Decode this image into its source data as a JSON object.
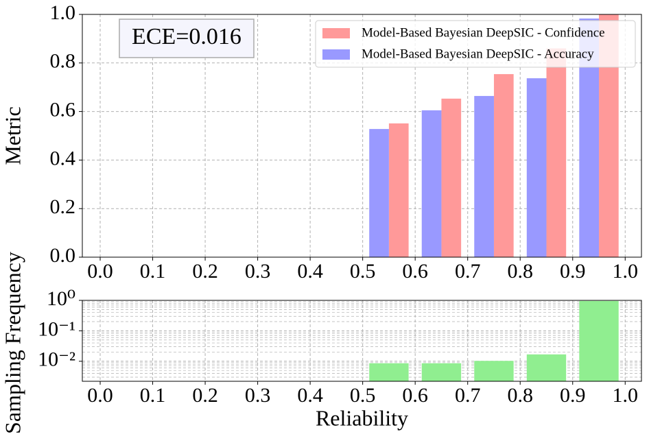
{
  "chart_data": [
    {
      "type": "bar",
      "ylabel": "Metric",
      "annotation": "ECE=0.016",
      "legend": "upper right",
      "grid": true,
      "x": [
        0.55,
        0.65,
        0.75,
        0.85,
        0.95
      ],
      "series": [
        {
          "name": "Model-Based Bayesian DeepSIC - Confidence",
          "color": "#ff9999",
          "values": [
            0.551,
            0.653,
            0.754,
            0.86,
            1.0
          ]
        },
        {
          "name": "Model-Based Bayesian DeepSIC - Accuracy",
          "color": "#9999ff",
          "values": [
            0.528,
            0.605,
            0.664,
            0.737,
            0.983
          ]
        }
      ],
      "xlim": [
        -0.034,
        1.031
      ],
      "xticks": [
        {
          "value": 0,
          "label": "0.0"
        },
        0.1,
        0.2,
        0.3,
        0.4,
        0.5,
        0.6,
        0.7,
        0.8,
        0.9,
        {
          "value": 1,
          "label": "1.0"
        }
      ],
      "ylim": [
        0,
        1
      ],
      "yticks": [
        {
          "value": 0,
          "label": "0.0"
        },
        0.2,
        0.4,
        0.6,
        0.8,
        {
          "value": 1,
          "label": "1.0"
        }
      ]
    },
    {
      "type": "bar",
      "xlabel": "Reliability",
      "ylabel": "Sampling Frequency",
      "log_scale": true,
      "grid": true,
      "x": [
        0.55,
        0.65,
        0.75,
        0.85,
        0.95
      ],
      "values": [
        0.0086,
        0.0086,
        0.0103,
        0.0168,
        0.956
      ],
      "color": "#90ee90",
      "xlim": [
        -0.034,
        1.031
      ],
      "xticks": [
        {
          "value": 0,
          "label": "0.0"
        },
        0.1,
        0.2,
        0.3,
        0.4,
        0.5,
        0.6,
        0.7,
        0.8,
        0.9,
        {
          "value": 1,
          "label": "1.0"
        }
      ],
      "ylim": [
        0.0022,
        1
      ],
      "yticks": [
        {
          "value": 1,
          "label": "10⁰"
        },
        {
          "value": 0.1,
          "label": "10⁻¹"
        },
        {
          "value": 0.01,
          "label": "10⁻²"
        }
      ],
      "yminorticks": [
        0.003,
        0.004,
        0.005,
        0.006,
        0.007,
        0.008,
        0.009,
        0.02,
        0.03,
        0.04,
        0.05,
        0.06,
        0.07,
        0.08,
        0.09,
        0.2,
        0.3,
        0.4,
        0.5,
        0.6,
        0.7,
        0.8,
        0.9
      ]
    }
  ]
}
